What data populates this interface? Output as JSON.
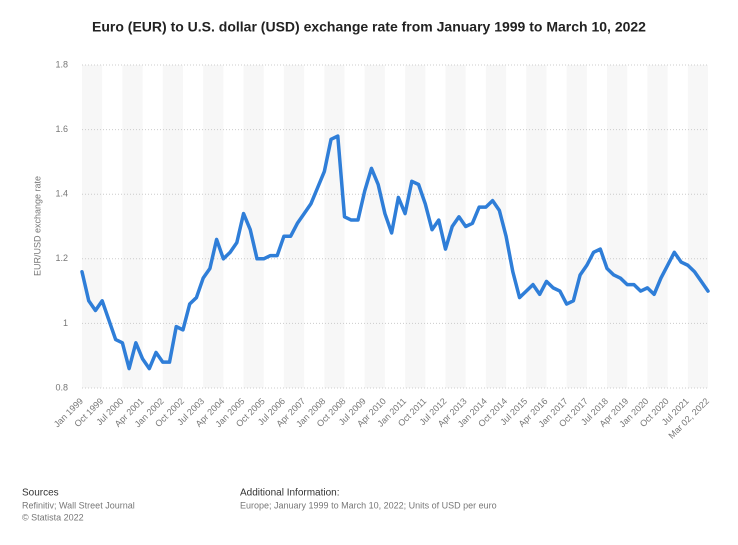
{
  "chart_data": {
    "type": "line",
    "title": "Euro (EUR) to U.S. dollar (USD) exchange rate from January 1999 to March 10, 2022",
    "y_label": "EUR/USD exchange rate",
    "categories": [
      "Jan 1999",
      null,
      null,
      "Oct 1999",
      null,
      null,
      "Jul 2000",
      null,
      null,
      "Apr 2001",
      null,
      null,
      "Jan 2002",
      null,
      null,
      "Oct 2002",
      null,
      null,
      "Jul 2003",
      null,
      null,
      "Apr 2004",
      null,
      null,
      "Jan 2005",
      null,
      null,
      "Oct 2005",
      null,
      null,
      "Jul 2006",
      null,
      null,
      "Apr 2007",
      null,
      null,
      "Jan 2008",
      null,
      null,
      "Oct 2008",
      null,
      null,
      "Jul 2009",
      null,
      null,
      "Apr 2010",
      null,
      null,
      "Jan 2011",
      null,
      null,
      "Oct 2011",
      null,
      null,
      "Jul 2012",
      null,
      null,
      "Apr 2013",
      null,
      null,
      "Jan 2014",
      null,
      null,
      "Oct 2014",
      null,
      null,
      "Jul 2015",
      null,
      null,
      "Apr 2016",
      null,
      null,
      "Jan 2017",
      null,
      null,
      "Oct 2017",
      null,
      null,
      "Jul 2018",
      null,
      null,
      "Apr 2019",
      null,
      null,
      "Jan 2020",
      null,
      null,
      "Oct 2020",
      null,
      null,
      "Jul 2021",
      null,
      null,
      "Mar 02, 2022"
    ],
    "values": [
      1.16,
      1.07,
      1.04,
      1.07,
      1.01,
      0.95,
      0.94,
      0.86,
      0.94,
      0.89,
      0.86,
      0.91,
      0.88,
      0.88,
      0.99,
      0.98,
      1.06,
      1.08,
      1.14,
      1.17,
      1.26,
      1.2,
      1.22,
      1.25,
      1.34,
      1.29,
      1.2,
      1.2,
      1.21,
      1.21,
      1.27,
      1.27,
      1.31,
      1.34,
      1.37,
      1.42,
      1.47,
      1.57,
      1.58,
      1.33,
      1.32,
      1.32,
      1.41,
      1.48,
      1.43,
      1.34,
      1.28,
      1.39,
      1.34,
      1.44,
      1.43,
      1.37,
      1.29,
      1.32,
      1.23,
      1.3,
      1.33,
      1.3,
      1.31,
      1.36,
      1.36,
      1.38,
      1.35,
      1.27,
      1.16,
      1.08,
      1.1,
      1.12,
      1.09,
      1.13,
      1.11,
      1.1,
      1.06,
      1.07,
      1.15,
      1.18,
      1.22,
      1.23,
      1.17,
      1.15,
      1.14,
      1.12,
      1.12,
      1.1,
      1.11,
      1.09,
      1.14,
      1.18,
      1.22,
      1.19,
      1.18,
      1.16,
      1.13,
      1.1
    ],
    "color": "#2f7ed8",
    "ylim": [
      0.8,
      1.8
    ],
    "yticks": [
      0.8,
      1,
      1.2,
      1.4,
      1.6,
      1.8
    ],
    "grid": true,
    "sources_heading": "Sources",
    "sources": "Refinitiv; Wall Street Journal",
    "copyright": "© Statista 2022",
    "info_heading": "Additional Information:",
    "info": "Europe; January 1999 to March 10, 2022; Units of USD per euro"
  }
}
